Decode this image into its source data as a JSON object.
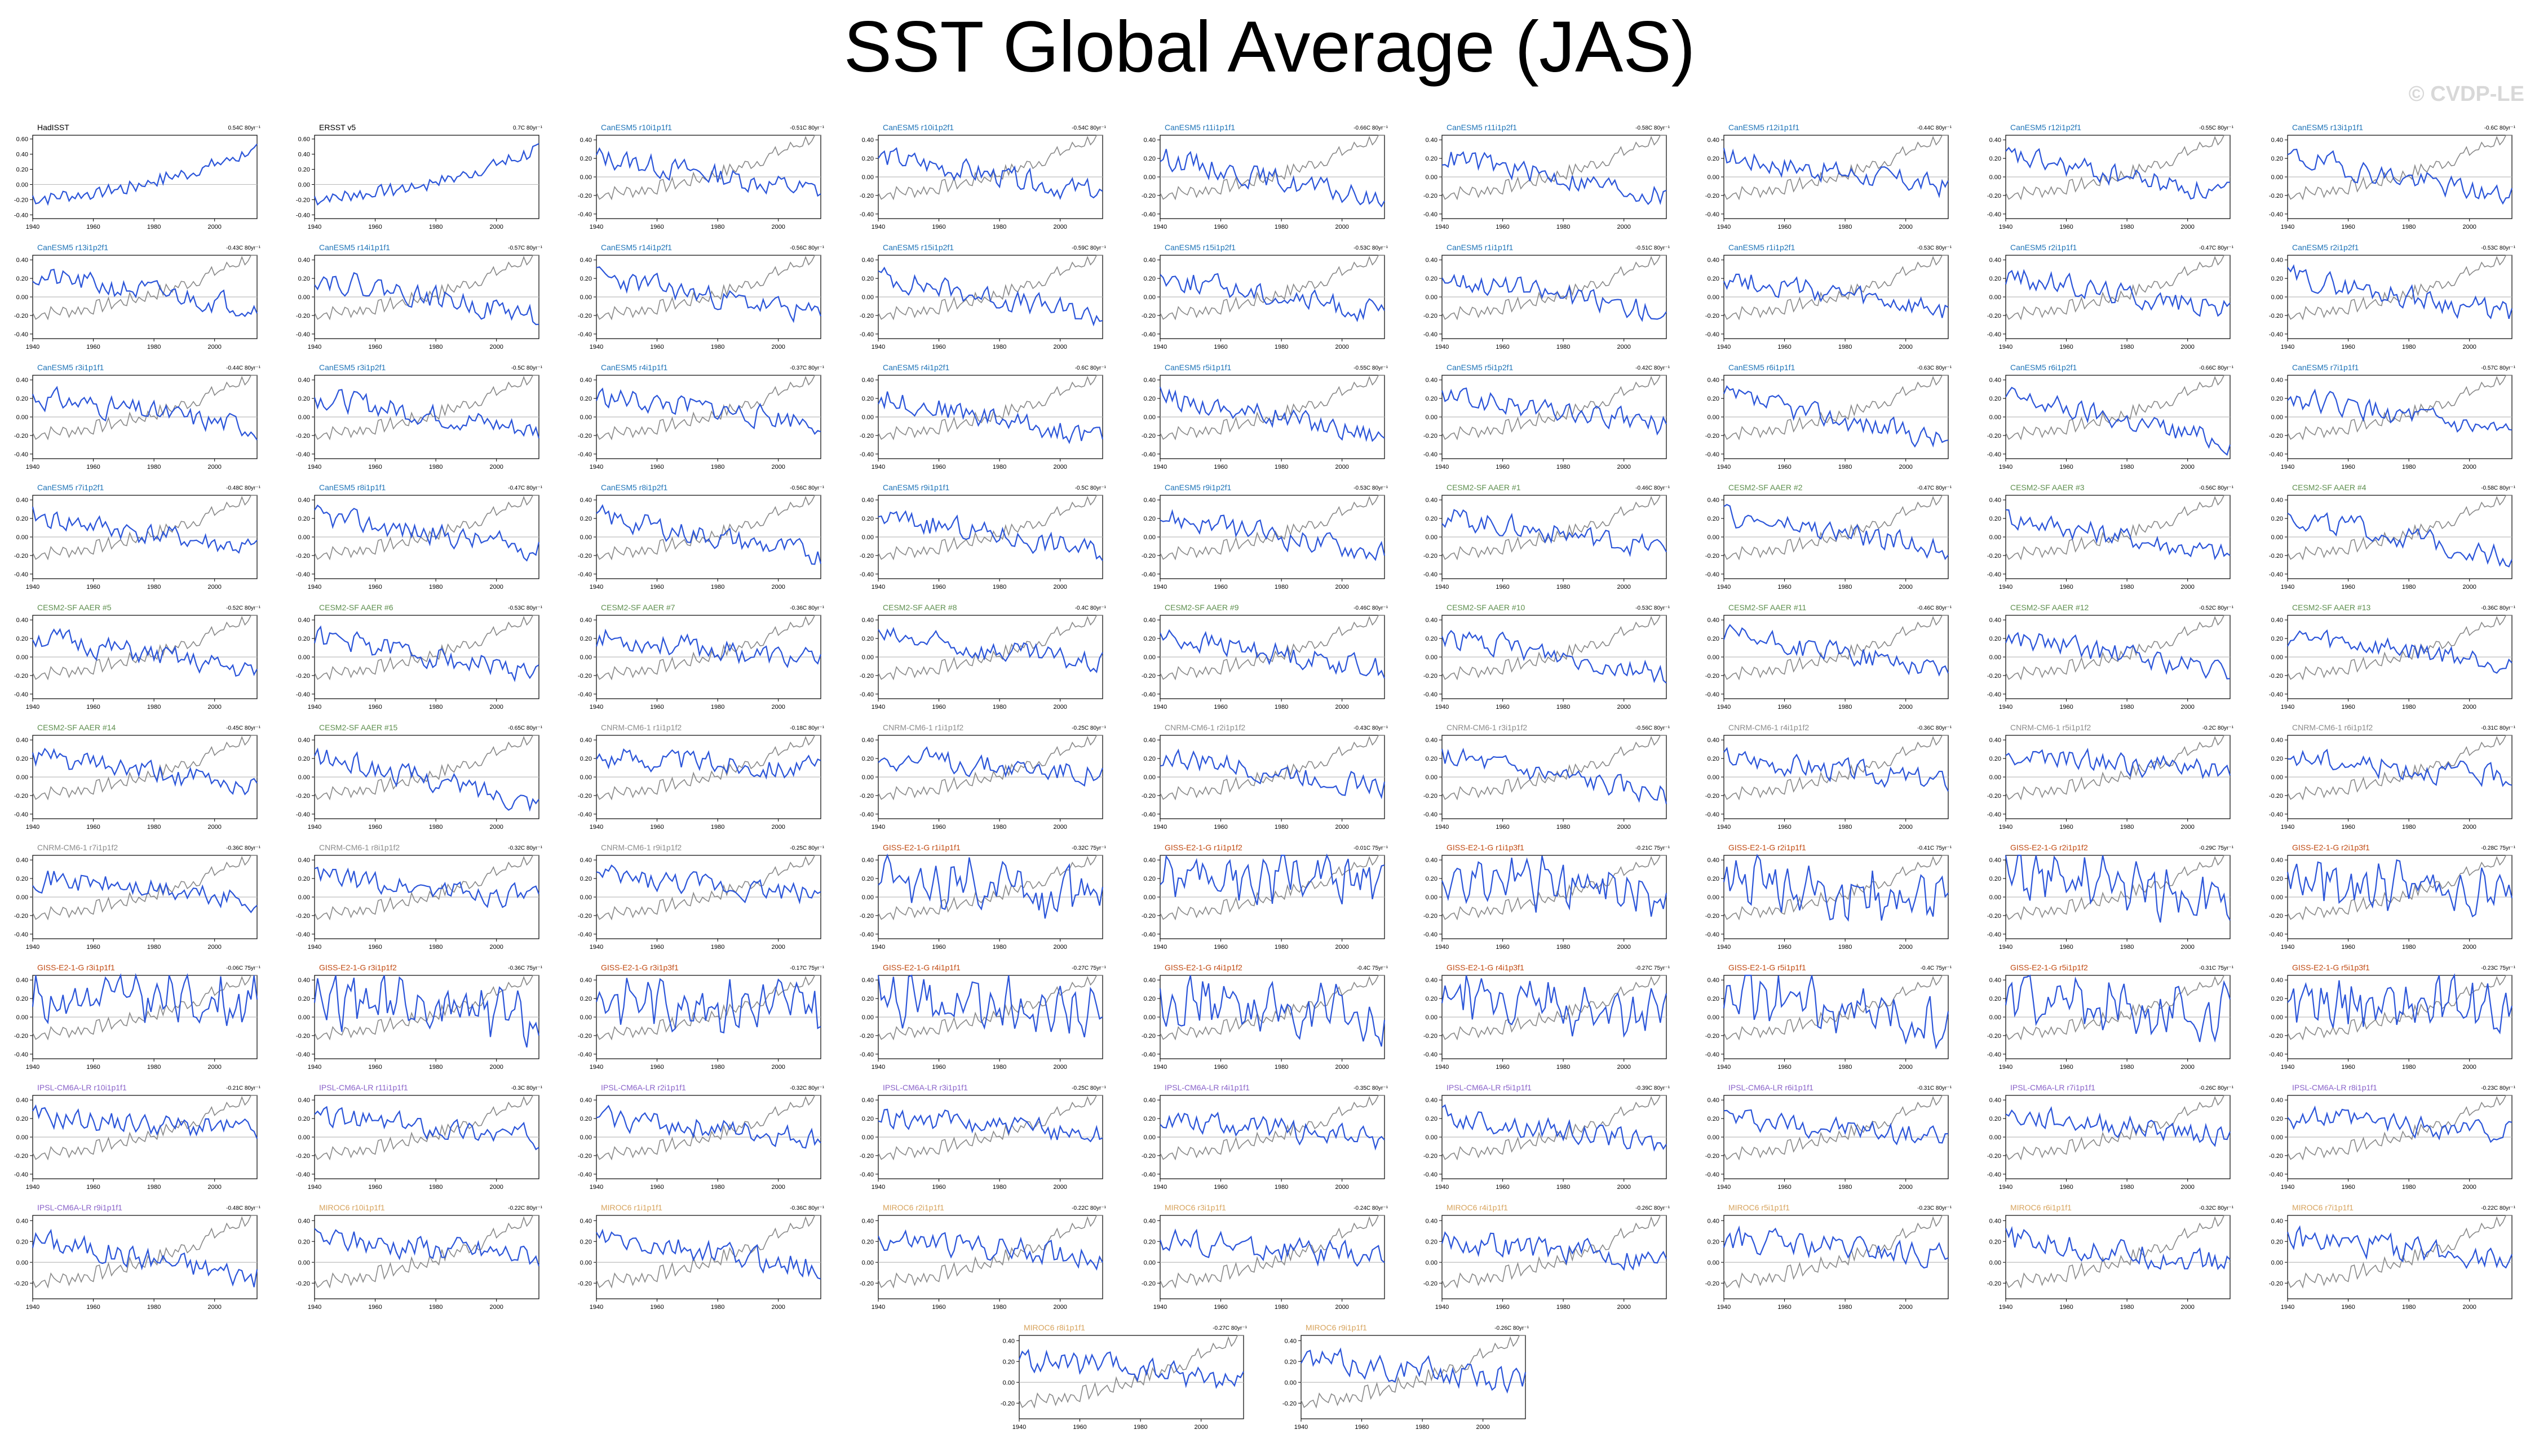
{
  "title": "SST Global Average (JAS)",
  "watermark": "© CVDP-LE",
  "colors": {
    "observed": "#000000",
    "model": "#2b55d9",
    "reference": "#888888",
    "zero_line": "#bdbdbd",
    "HadISST": "#000000",
    "ERSST": "#000000",
    "CanESM5": "#1f74b8",
    "CESM2": "#5e8f4e",
    "CNRM": "#8c8c8c",
    "GISS": "#c14a12",
    "IPSL": "#8a63c9",
    "MIROC": "#d7a35c"
  },
  "chart_data": {
    "type": "line",
    "x_ticks": [
      "1940",
      "1960",
      "1980",
      "2000"
    ],
    "xlim": [
      1940,
      2014
    ],
    "y_ticks_obs": [
      "0.60",
      "0.40",
      "0.20",
      "0.00",
      "-0.20",
      "-0.40"
    ],
    "y_ticks_model": [
      "0.40",
      "0.20",
      "0.00",
      "-0.20",
      "-0.40"
    ],
    "panels": [
      {
        "name": "HadISST",
        "trend": "0.54C 80yr⁻¹",
        "group": "HadISST",
        "seed": 11,
        "ylim": [
          -0.45,
          0.65
        ],
        "obs": true
      },
      {
        "name": "ERSST v5",
        "trend": "0.7C 80yr⁻¹",
        "group": "ERSST",
        "seed": 12,
        "ylim": [
          -0.45,
          0.65
        ],
        "obs": true
      },
      {
        "name": "CanESM5 r10i1p1f1",
        "trend": "-0.51C 80yr⁻¹",
        "group": "CanESM5",
        "seed": 13,
        "ylim": [
          -0.45,
          0.45
        ]
      },
      {
        "name": "CanESM5 r10i1p2f1",
        "trend": "-0.54C 80yr⁻¹",
        "group": "CanESM5",
        "seed": 14,
        "ylim": [
          -0.45,
          0.45
        ]
      },
      {
        "name": "CanESM5 r11i1p1f1",
        "trend": "-0.66C 80yr⁻¹",
        "group": "CanESM5",
        "seed": 15,
        "ylim": [
          -0.45,
          0.45
        ]
      },
      {
        "name": "CanESM5 r11i1p2f1",
        "trend": "-0.58C 80yr⁻¹",
        "group": "CanESM5",
        "seed": 16,
        "ylim": [
          -0.45,
          0.45
        ]
      },
      {
        "name": "CanESM5 r12i1p1f1",
        "trend": "-0.44C 80yr⁻¹",
        "group": "CanESM5",
        "seed": 17,
        "ylim": [
          -0.45,
          0.45
        ]
      },
      {
        "name": "CanESM5 r12i1p2f1",
        "trend": "-0.55C 80yr⁻¹",
        "group": "CanESM5",
        "seed": 18,
        "ylim": [
          -0.45,
          0.45
        ]
      },
      {
        "name": "CanESM5 r13i1p1f1",
        "trend": "-0.6C 80yr⁻¹",
        "group": "CanESM5",
        "seed": 19,
        "ylim": [
          -0.45,
          0.45
        ]
      },
      {
        "name": "CanESM5 r13i1p2f1",
        "trend": "-0.43C 80yr⁻¹",
        "group": "CanESM5",
        "seed": 21,
        "ylim": [
          -0.45,
          0.45
        ]
      },
      {
        "name": "CanESM5 r14i1p1f1",
        "trend": "-0.57C 80yr⁻¹",
        "group": "CanESM5",
        "seed": 22,
        "ylim": [
          -0.45,
          0.45
        ]
      },
      {
        "name": "CanESM5 r14i1p2f1",
        "trend": "-0.56C 80yr⁻¹",
        "group": "CanESM5",
        "seed": 23,
        "ylim": [
          -0.45,
          0.45
        ]
      },
      {
        "name": "CanESM5 r15i1p2f1",
        "trend": "-0.59C 80yr⁻¹",
        "group": "CanESM5",
        "seed": 24,
        "ylim": [
          -0.45,
          0.45
        ]
      },
      {
        "name": "CanESM5 r15i1p2f1",
        "trend": "-0.53C 80yr⁻¹",
        "group": "CanESM5",
        "seed": 25,
        "ylim": [
          -0.45,
          0.45
        ]
      },
      {
        "name": "CanESM5 r1i1p1f1",
        "trend": "-0.51C 80yr⁻¹",
        "group": "CanESM5",
        "seed": 26,
        "ylim": [
          -0.45,
          0.45
        ]
      },
      {
        "name": "CanESM5 r1i1p2f1",
        "trend": "-0.53C 80yr⁻¹",
        "group": "CanESM5",
        "seed": 27,
        "ylim": [
          -0.45,
          0.45
        ]
      },
      {
        "name": "CanESM5 r2i1p1f1",
        "trend": "-0.47C 80yr⁻¹",
        "group": "CanESM5",
        "seed": 28,
        "ylim": [
          -0.45,
          0.45
        ]
      },
      {
        "name": "CanESM5 r2i1p2f1",
        "trend": "-0.53C 80yr⁻¹",
        "group": "CanESM5",
        "seed": 29,
        "ylim": [
          -0.45,
          0.45
        ]
      },
      {
        "name": "CanESM5 r3i1p1f1",
        "trend": "-0.44C 80yr⁻¹",
        "group": "CanESM5",
        "seed": 31,
        "ylim": [
          -0.45,
          0.45
        ]
      },
      {
        "name": "CanESM5 r3i1p2f1",
        "trend": "-0.5C 80yr⁻¹",
        "group": "CanESM5",
        "seed": 32,
        "ylim": [
          -0.45,
          0.45
        ]
      },
      {
        "name": "CanESM5 r4i1p1f1",
        "trend": "-0.37C 80yr⁻¹",
        "group": "CanESM5",
        "seed": 33,
        "ylim": [
          -0.45,
          0.45
        ]
      },
      {
        "name": "CanESM5 r4i1p2f1",
        "trend": "-0.6C 80yr⁻¹",
        "group": "CanESM5",
        "seed": 34,
        "ylim": [
          -0.45,
          0.45
        ]
      },
      {
        "name": "CanESM5 r5i1p1f1",
        "trend": "-0.55C 80yr⁻¹",
        "group": "CanESM5",
        "seed": 35,
        "ylim": [
          -0.45,
          0.45
        ]
      },
      {
        "name": "CanESM5 r5i1p2f1",
        "trend": "-0.42C 80yr⁻¹",
        "group": "CanESM5",
        "seed": 36,
        "ylim": [
          -0.45,
          0.45
        ]
      },
      {
        "name": "CanESM5 r6i1p1f1",
        "trend": "-0.63C 80yr⁻¹",
        "group": "CanESM5",
        "seed": 37,
        "ylim": [
          -0.45,
          0.45
        ]
      },
      {
        "name": "CanESM5 r6i1p2f1",
        "trend": "-0.66C 80yr⁻¹",
        "group": "CanESM5",
        "seed": 38,
        "ylim": [
          -0.45,
          0.45
        ]
      },
      {
        "name": "CanESM5 r7i1p1f1",
        "trend": "-0.57C 80yr⁻¹",
        "group": "CanESM5",
        "seed": 39,
        "ylim": [
          -0.45,
          0.45
        ]
      },
      {
        "name": "CanESM5 r7i1p2f1",
        "trend": "-0.48C 80yr⁻¹",
        "group": "CanESM5",
        "seed": 41,
        "ylim": [
          -0.45,
          0.45
        ]
      },
      {
        "name": "CanESM5 r8i1p1f1",
        "trend": "-0.47C 80yr⁻¹",
        "group": "CanESM5",
        "seed": 42,
        "ylim": [
          -0.45,
          0.45
        ]
      },
      {
        "name": "CanESM5 r8i1p2f1",
        "trend": "-0.56C 80yr⁻¹",
        "group": "CanESM5",
        "seed": 43,
        "ylim": [
          -0.45,
          0.45
        ]
      },
      {
        "name": "CanESM5 r9i1p1f1",
        "trend": "-0.5C 80yr⁻¹",
        "group": "CanESM5",
        "seed": 44,
        "ylim": [
          -0.45,
          0.45
        ]
      },
      {
        "name": "CanESM5 r9i1p2f1",
        "trend": "-0.53C 80yr⁻¹",
        "group": "CanESM5",
        "seed": 45,
        "ylim": [
          -0.45,
          0.45
        ]
      },
      {
        "name": "CESM2-SF AAER #1",
        "trend": "-0.46C 80yr⁻¹",
        "group": "CESM2",
        "seed": 46,
        "ylim": [
          -0.45,
          0.45
        ]
      },
      {
        "name": "CESM2-SF AAER #2",
        "trend": "-0.47C 80yr⁻¹",
        "group": "CESM2",
        "seed": 47,
        "ylim": [
          -0.45,
          0.45
        ]
      },
      {
        "name": "CESM2-SF AAER #3",
        "trend": "-0.56C 80yr⁻¹",
        "group": "CESM2",
        "seed": 48,
        "ylim": [
          -0.45,
          0.45
        ]
      },
      {
        "name": "CESM2-SF AAER #4",
        "trend": "-0.58C 80yr⁻¹",
        "group": "CESM2",
        "seed": 49,
        "ylim": [
          -0.45,
          0.45
        ]
      },
      {
        "name": "CESM2-SF AAER #5",
        "trend": "-0.52C 80yr⁻¹",
        "group": "CESM2",
        "seed": 51,
        "ylim": [
          -0.45,
          0.45
        ]
      },
      {
        "name": "CESM2-SF AAER #6",
        "trend": "-0.53C 80yr⁻¹",
        "group": "CESM2",
        "seed": 52,
        "ylim": [
          -0.45,
          0.45
        ]
      },
      {
        "name": "CESM2-SF AAER #7",
        "trend": "-0.36C 80yr⁻¹",
        "group": "CESM2",
        "seed": 53,
        "ylim": [
          -0.45,
          0.45
        ]
      },
      {
        "name": "CESM2-SF AAER #8",
        "trend": "-0.4C 80yr⁻¹",
        "group": "CESM2",
        "seed": 54,
        "ylim": [
          -0.45,
          0.45
        ]
      },
      {
        "name": "CESM2-SF AAER #9",
        "trend": "-0.46C 80yr⁻¹",
        "group": "CESM2",
        "seed": 55,
        "ylim": [
          -0.45,
          0.45
        ]
      },
      {
        "name": "CESM2-SF AAER #10",
        "trend": "-0.53C 80yr⁻¹",
        "group": "CESM2",
        "seed": 56,
        "ylim": [
          -0.45,
          0.45
        ]
      },
      {
        "name": "CESM2-SF AAER #11",
        "trend": "-0.46C 80yr⁻¹",
        "group": "CESM2",
        "seed": 57,
        "ylim": [
          -0.45,
          0.45
        ]
      },
      {
        "name": "CESM2-SF AAER #12",
        "trend": "-0.52C 80yr⁻¹",
        "group": "CESM2",
        "seed": 58,
        "ylim": [
          -0.45,
          0.45
        ]
      },
      {
        "name": "CESM2-SF AAER #13",
        "trend": "-0.36C 80yr⁻¹",
        "group": "CESM2",
        "seed": 59,
        "ylim": [
          -0.45,
          0.45
        ]
      },
      {
        "name": "CESM2-SF AAER #14",
        "trend": "-0.45C 80yr⁻¹",
        "group": "CESM2",
        "seed": 61,
        "ylim": [
          -0.45,
          0.45
        ]
      },
      {
        "name": "CESM2-SF AAER #15",
        "trend": "-0.65C 80yr⁻¹",
        "group": "CESM2",
        "seed": 62,
        "ylim": [
          -0.45,
          0.45
        ]
      },
      {
        "name": "CNRM-CM6-1 r1i1p1f2",
        "trend": "-0.18C 80yr⁻¹",
        "group": "CNRM",
        "seed": 63,
        "ylim": [
          -0.45,
          0.45
        ]
      },
      {
        "name": "CNRM-CM6-1 r1i1p1f2",
        "trend": "-0.25C 80yr⁻¹",
        "group": "CNRM",
        "seed": 64,
        "ylim": [
          -0.45,
          0.45
        ]
      },
      {
        "name": "CNRM-CM6-1 r2i1p1f2",
        "trend": "-0.43C 80yr⁻¹",
        "group": "CNRM",
        "seed": 65,
        "ylim": [
          -0.45,
          0.45
        ]
      },
      {
        "name": "CNRM-CM6-1 r3i1p1f2",
        "trend": "-0.56C 80yr⁻¹",
        "group": "CNRM",
        "seed": 66,
        "ylim": [
          -0.45,
          0.45
        ]
      },
      {
        "name": "CNRM-CM6-1 r4i1p1f2",
        "trend": "-0.36C 80yr⁻¹",
        "group": "CNRM",
        "seed": 67,
        "ylim": [
          -0.45,
          0.45
        ]
      },
      {
        "name": "CNRM-CM6-1 r5i1p1f2",
        "trend": "-0.2C 80yr⁻¹",
        "group": "CNRM",
        "seed": 68,
        "ylim": [
          -0.45,
          0.45
        ]
      },
      {
        "name": "CNRM-CM6-1 r6i1p1f2",
        "trend": "-0.31C 80yr⁻¹",
        "group": "CNRM",
        "seed": 69,
        "ylim": [
          -0.45,
          0.45
        ]
      },
      {
        "name": "CNRM-CM6-1 r7i1p1f2",
        "trend": "-0.36C 80yr⁻¹",
        "group": "CNRM",
        "seed": 71,
        "ylim": [
          -0.45,
          0.45
        ]
      },
      {
        "name": "CNRM-CM6-1 r8i1p1f2",
        "trend": "-0.32C 80yr⁻¹",
        "group": "CNRM",
        "seed": 72,
        "ylim": [
          -0.45,
          0.45
        ]
      },
      {
        "name": "CNRM-CM6-1 r9i1p1f2",
        "trend": "-0.25C 80yr⁻¹",
        "group": "CNRM",
        "seed": 73,
        "ylim": [
          -0.45,
          0.45
        ]
      },
      {
        "name": "GISS-E2-1-G r1i1p1f1",
        "trend": "-0.32C 75yr⁻¹",
        "group": "GISS",
        "seed": 74,
        "ylim": [
          -0.45,
          0.45
        ]
      },
      {
        "name": "GISS-E2-1-G r1i1p1f2",
        "trend": "-0.01C 75yr⁻¹",
        "group": "GISS",
        "seed": 75,
        "ylim": [
          -0.45,
          0.45
        ]
      },
      {
        "name": "GISS-E2-1-G r1i1p3f1",
        "trend": "-0.21C 75yr⁻¹",
        "group": "GISS",
        "seed": 76,
        "ylim": [
          -0.45,
          0.45
        ]
      },
      {
        "name": "GISS-E2-1-G r2i1p1f1",
        "trend": "-0.41C 75yr⁻¹",
        "group": "GISS",
        "seed": 77,
        "ylim": [
          -0.45,
          0.45
        ]
      },
      {
        "name": "GISS-E2-1-G r2i1p1f2",
        "trend": "-0.29C 75yr⁻¹",
        "group": "GISS",
        "seed": 78,
        "ylim": [
          -0.45,
          0.45
        ]
      },
      {
        "name": "GISS-E2-1-G r2i1p3f1",
        "trend": "-0.28C 75yr⁻¹",
        "group": "GISS",
        "seed": 79,
        "ylim": [
          -0.45,
          0.45
        ]
      },
      {
        "name": "GISS-E2-1-G r3i1p1f1",
        "trend": "-0.06C 75yr⁻¹",
        "group": "GISS",
        "seed": 81,
        "ylim": [
          -0.45,
          0.45
        ]
      },
      {
        "name": "GISS-E2-1-G r3i1p1f2",
        "trend": "-0.36C 75yr⁻¹",
        "group": "GISS",
        "seed": 82,
        "ylim": [
          -0.45,
          0.45
        ]
      },
      {
        "name": "GISS-E2-1-G r3i1p3f1",
        "trend": "-0.17C 75yr⁻¹",
        "group": "GISS",
        "seed": 83,
        "ylim": [
          -0.45,
          0.45
        ]
      },
      {
        "name": "GISS-E2-1-G r4i1p1f1",
        "trend": "-0.27C 75yr⁻¹",
        "group": "GISS",
        "seed": 84,
        "ylim": [
          -0.45,
          0.45
        ]
      },
      {
        "name": "GISS-E2-1-G r4i1p1f2",
        "trend": "-0.4C 75yr⁻¹",
        "group": "GISS",
        "seed": 85,
        "ylim": [
          -0.45,
          0.45
        ]
      },
      {
        "name": "GISS-E2-1-G r4i1p3f1",
        "trend": "-0.27C 75yr⁻¹",
        "group": "GISS",
        "seed": 86,
        "ylim": [
          -0.45,
          0.45
        ]
      },
      {
        "name": "GISS-E2-1-G r5i1p1f1",
        "trend": "-0.4C 75yr⁻¹",
        "group": "GISS",
        "seed": 87,
        "ylim": [
          -0.45,
          0.45
        ]
      },
      {
        "name": "GISS-E2-1-G r5i1p1f2",
        "trend": "-0.31C 75yr⁻¹",
        "group": "GISS",
        "seed": 88,
        "ylim": [
          -0.45,
          0.45
        ]
      },
      {
        "name": "GISS-E2-1-G r5i1p3f1",
        "trend": "-0.23C 75yr⁻¹",
        "group": "GISS",
        "seed": 89,
        "ylim": [
          -0.45,
          0.45
        ]
      },
      {
        "name": "IPSL-CM6A-LR r10i1p1f1",
        "trend": "-0.21C 80yr⁻¹",
        "group": "IPSL",
        "seed": 91,
        "ylim": [
          -0.45,
          0.45
        ]
      },
      {
        "name": "IPSL-CM6A-LR r11i1p1f1",
        "trend": "-0.3C 80yr⁻¹",
        "group": "IPSL",
        "seed": 92,
        "ylim": [
          -0.45,
          0.45
        ]
      },
      {
        "name": "IPSL-CM6A-LR r2i1p1f1",
        "trend": "-0.32C 80yr⁻¹",
        "group": "IPSL",
        "seed": 93,
        "ylim": [
          -0.45,
          0.45
        ]
      },
      {
        "name": "IPSL-CM6A-LR r3i1p1f1",
        "trend": "-0.25C 80yr⁻¹",
        "group": "IPSL",
        "seed": 94,
        "ylim": [
          -0.45,
          0.45
        ]
      },
      {
        "name": "IPSL-CM6A-LR r4i1p1f1",
        "trend": "-0.35C 80yr⁻¹",
        "group": "IPSL",
        "seed": 95,
        "ylim": [
          -0.45,
          0.45
        ]
      },
      {
        "name": "IPSL-CM6A-LR r5i1p1f1",
        "trend": "-0.39C 80yr⁻¹",
        "group": "IPSL",
        "seed": 96,
        "ylim": [
          -0.45,
          0.45
        ]
      },
      {
        "name": "IPSL-CM6A-LR r6i1p1f1",
        "trend": "-0.31C 80yr⁻¹",
        "group": "IPSL",
        "seed": 97,
        "ylim": [
          -0.45,
          0.45
        ]
      },
      {
        "name": "IPSL-CM6A-LR r7i1p1f1",
        "trend": "-0.26C 80yr⁻¹",
        "group": "IPSL",
        "seed": 98,
        "ylim": [
          -0.45,
          0.45
        ]
      },
      {
        "name": "IPSL-CM6A-LR r8i1p1f1",
        "trend": "-0.23C 80yr⁻¹",
        "group": "IPSL",
        "seed": 99,
        "ylim": [
          -0.45,
          0.45
        ]
      },
      {
        "name": "IPSL-CM6A-LR r9i1p1f1",
        "trend": "-0.48C 80yr⁻¹",
        "group": "IPSL",
        "seed": 101,
        "ylim": [
          -0.35,
          0.45
        ]
      },
      {
        "name": "MIROC6 r10i1p1f1",
        "trend": "-0.22C 80yr⁻¹",
        "group": "MIROC",
        "seed": 102,
        "ylim": [
          -0.35,
          0.45
        ]
      },
      {
        "name": "MIROC6 r1i1p1f1",
        "trend": "-0.36C 80yr⁻¹",
        "group": "MIROC",
        "seed": 103,
        "ylim": [
          -0.35,
          0.45
        ]
      },
      {
        "name": "MIROC6 r2i1p1f1",
        "trend": "-0.22C 80yr⁻¹",
        "group": "MIROC",
        "seed": 104,
        "ylim": [
          -0.35,
          0.45
        ]
      },
      {
        "name": "MIROC6 r3i1p1f1",
        "trend": "-0.24C 80yr⁻¹",
        "group": "MIROC",
        "seed": 105,
        "ylim": [
          -0.35,
          0.45
        ]
      },
      {
        "name": "MIROC6 r4i1p1f1",
        "trend": "-0.26C 80yr⁻¹",
        "group": "MIROC",
        "seed": 106,
        "ylim": [
          -0.35,
          0.45
        ]
      },
      {
        "name": "MIROC6 r5i1p1f1",
        "trend": "-0.23C 80yr⁻¹",
        "group": "MIROC",
        "seed": 107,
        "ylim": [
          -0.35,
          0.45
        ]
      },
      {
        "name": "MIROC6 r6i1p1f1",
        "trend": "-0.32C 80yr⁻¹",
        "group": "MIROC",
        "seed": 108,
        "ylim": [
          -0.35,
          0.45
        ]
      },
      {
        "name": "MIROC6 r7i1p1f1",
        "trend": "-0.22C 80yr⁻¹",
        "group": "MIROC",
        "seed": 109,
        "ylim": [
          -0.35,
          0.45
        ]
      },
      {
        "name": "MIROC6 r8i1p1f1",
        "trend": "-0.27C 80yr⁻¹",
        "group": "MIROC",
        "seed": 111,
        "ylim": [
          -0.35,
          0.45
        ]
      },
      {
        "name": "MIROC6 r9i1p1f1",
        "trend": "-0.26C 80yr⁻¹",
        "group": "MIROC",
        "seed": 112,
        "ylim": [
          -0.35,
          0.45
        ]
      }
    ]
  }
}
